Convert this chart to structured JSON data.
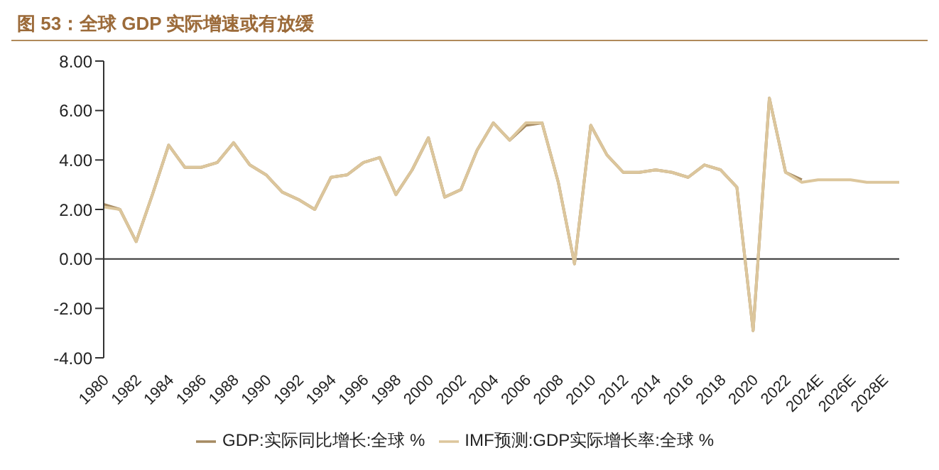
{
  "chart_data": {
    "type": "line",
    "title": "图 53：全球 GDP 实际增速或有放缓",
    "categories": [
      "1980",
      null,
      "1982",
      null,
      "1984",
      null,
      "1986",
      null,
      "1988",
      null,
      "1990",
      null,
      "1992",
      null,
      "1994",
      null,
      "1996",
      null,
      "1998",
      null,
      "2000",
      null,
      "2002",
      null,
      "2004",
      null,
      "2006",
      null,
      "2008",
      null,
      "2010",
      null,
      "2012",
      null,
      "2014",
      null,
      "2016",
      null,
      "2018",
      null,
      "2020",
      null,
      "2022",
      null,
      "2024E",
      null,
      "2026E",
      null,
      "2028E",
      null
    ],
    "series": [
      {
        "name": "GDP:实际同比增长:全球 %",
        "color": "#a58a62",
        "values": [
          2.2,
          2.0,
          0.7,
          2.6,
          4.6,
          3.7,
          3.7,
          3.9,
          4.7,
          3.8,
          3.4,
          2.7,
          2.4,
          2.0,
          3.3,
          3.4,
          3.9,
          4.1,
          2.6,
          3.6,
          4.9,
          2.5,
          2.8,
          4.4,
          5.5,
          4.8,
          5.4,
          5.5,
          3.1,
          -0.2,
          5.4,
          4.2,
          3.5,
          3.5,
          3.6,
          3.5,
          3.3,
          3.8,
          3.6,
          2.9,
          -2.9,
          6.5,
          3.5,
          3.2,
          null,
          null,
          null,
          null,
          null,
          null
        ]
      },
      {
        "name": "IMF预测:GDP实际增长率:全球 %",
        "color": "#dcc69c",
        "values": [
          2.1,
          2.0,
          0.7,
          2.6,
          4.6,
          3.7,
          3.7,
          3.9,
          4.7,
          3.8,
          3.4,
          2.7,
          2.4,
          2.0,
          3.3,
          3.4,
          3.9,
          4.1,
          2.6,
          3.6,
          4.9,
          2.5,
          2.8,
          4.4,
          5.5,
          4.8,
          5.5,
          5.5,
          3.1,
          -0.2,
          5.4,
          4.2,
          3.5,
          3.5,
          3.6,
          3.5,
          3.3,
          3.8,
          3.6,
          2.9,
          -2.9,
          6.5,
          3.5,
          3.1,
          3.2,
          3.2,
          3.2,
          3.1,
          3.1,
          3.1
        ]
      }
    ],
    "ylim": [
      -4,
      8
    ],
    "yticks": [
      {
        "value": -4,
        "label": "-4.00"
      },
      {
        "value": -2,
        "label": "-2.00"
      },
      {
        "value": 0,
        "label": "0.00"
      },
      {
        "value": 2,
        "label": "2.00"
      },
      {
        "value": 4,
        "label": "4.00"
      },
      {
        "value": 6,
        "label": "6.00"
      },
      {
        "value": 8,
        "label": "8.00"
      }
    ],
    "legend": "bottom",
    "marker": "none",
    "line_style": "solid"
  }
}
